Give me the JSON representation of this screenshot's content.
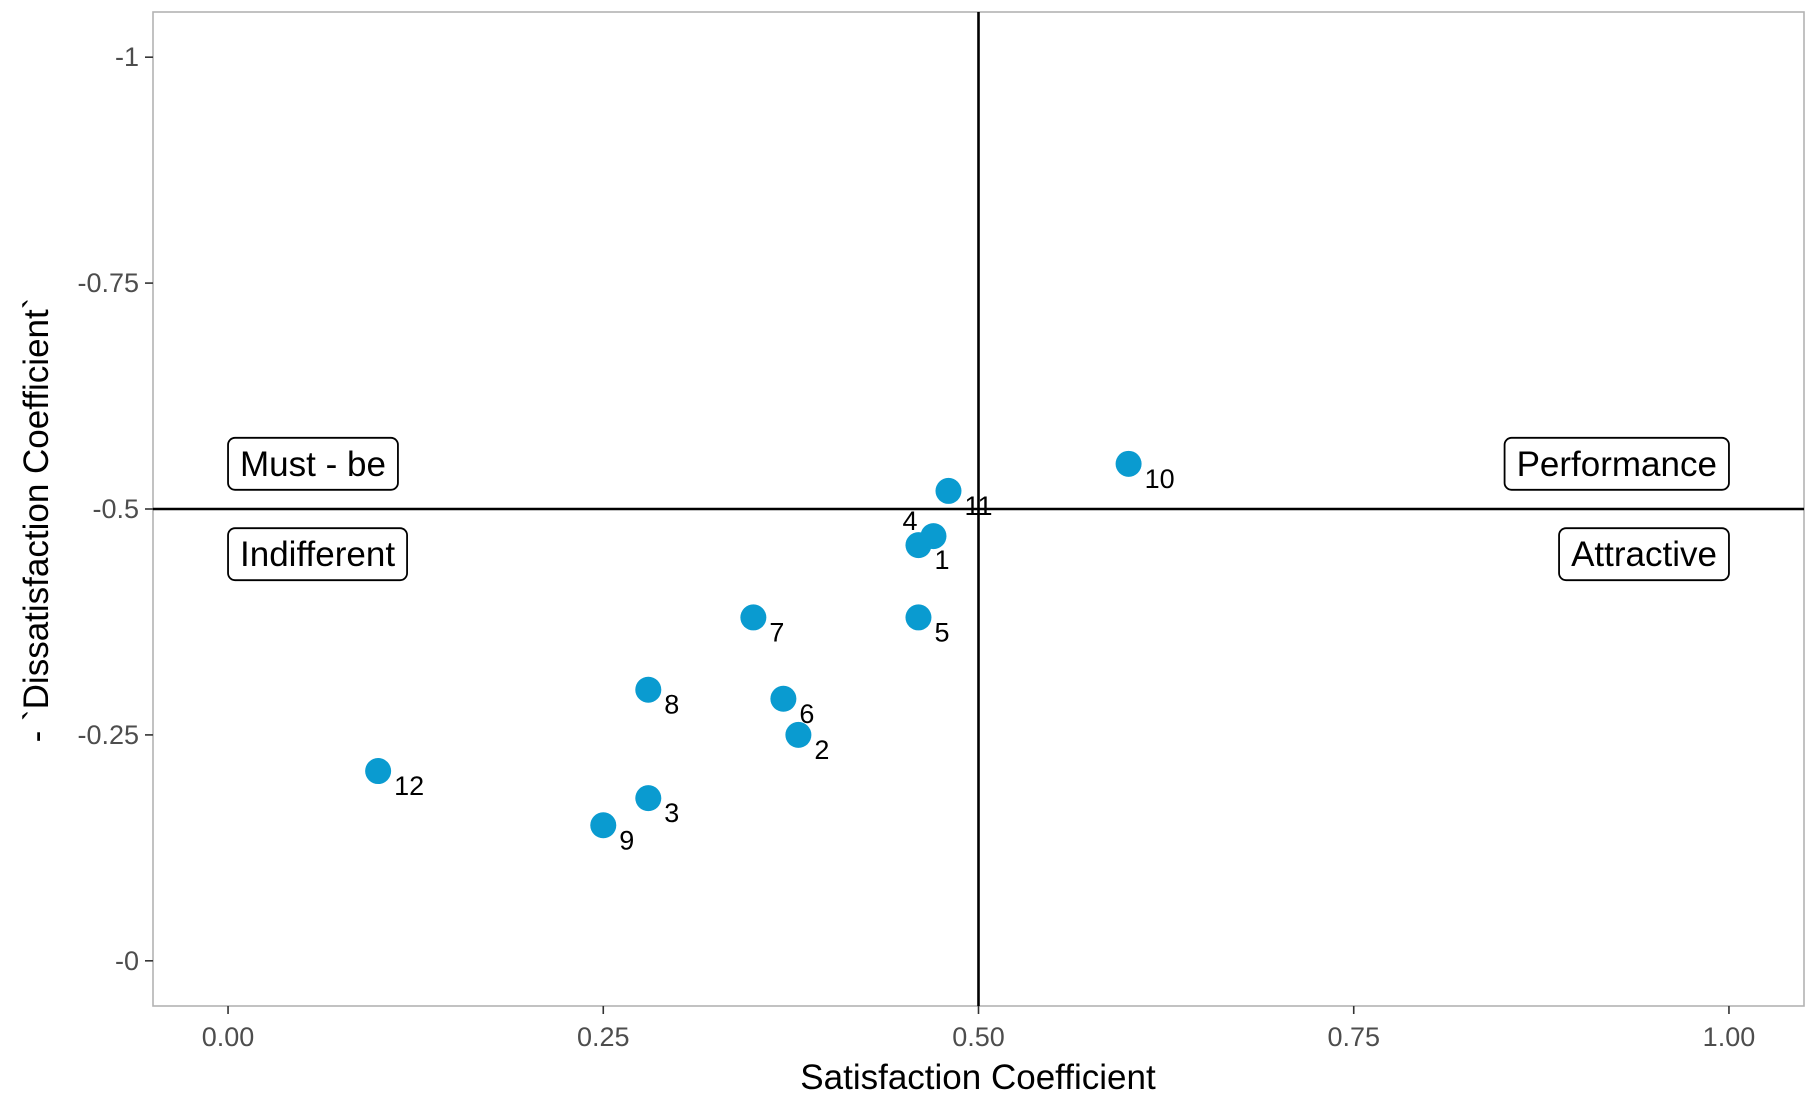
{
  "chart_data": {
    "type": "scatter",
    "xlabel": "Satisfaction Coefficient",
    "ylabel": "- `Dissatisfaction Coefficient`",
    "xlim": [
      -0.05,
      1.05
    ],
    "ylim": [
      -1.05,
      0.05
    ],
    "y_reversed": true,
    "grid": false,
    "x_ticks": [
      {
        "value": 0.0,
        "label": "0.00"
      },
      {
        "value": 0.25,
        "label": "0.25"
      },
      {
        "value": 0.5,
        "label": "0.50"
      },
      {
        "value": 0.75,
        "label": "0.75"
      },
      {
        "value": 1.0,
        "label": "1.00"
      }
    ],
    "y_ticks": [
      {
        "value": -1.0,
        "label": "-1"
      },
      {
        "value": -0.75,
        "label": "-0.75"
      },
      {
        "value": -0.5,
        "label": "-0.5"
      },
      {
        "value": -0.25,
        "label": "-0.25"
      },
      {
        "value": 0.0,
        "label": "-0"
      }
    ],
    "reference_lines": {
      "x": 0.5,
      "y": -0.5
    },
    "point_color": "#0a9bd0",
    "points": [
      {
        "label": "1",
        "x": 0.46,
        "y": -0.46
      },
      {
        "label": "2",
        "x": 0.38,
        "y": -0.25
      },
      {
        "label": "3",
        "x": 0.28,
        "y": -0.18
      },
      {
        "label": "4",
        "x": 0.47,
        "y": -0.47
      },
      {
        "label": "5",
        "x": 0.46,
        "y": -0.38
      },
      {
        "label": "6",
        "x": 0.37,
        "y": -0.29
      },
      {
        "label": "7",
        "x": 0.35,
        "y": -0.38
      },
      {
        "label": "8",
        "x": 0.28,
        "y": -0.3
      },
      {
        "label": "9",
        "x": 0.25,
        "y": -0.15
      },
      {
        "label": "10",
        "x": 0.6,
        "y": -0.55
      },
      {
        "label": "11",
        "x": 0.48,
        "y": -0.52
      },
      {
        "label": "12",
        "x": 0.1,
        "y": -0.21
      }
    ],
    "annotations": [
      {
        "text": "Must - be",
        "x": 0.0,
        "y": -0.55,
        "anchor": "start"
      },
      {
        "text": "Indifferent",
        "x": 0.0,
        "y": -0.45,
        "anchor": "start"
      },
      {
        "text": "Performance",
        "x": 1.0,
        "y": -0.55,
        "anchor": "end"
      },
      {
        "text": "Attractive",
        "x": 1.0,
        "y": -0.45,
        "anchor": "end"
      }
    ]
  }
}
